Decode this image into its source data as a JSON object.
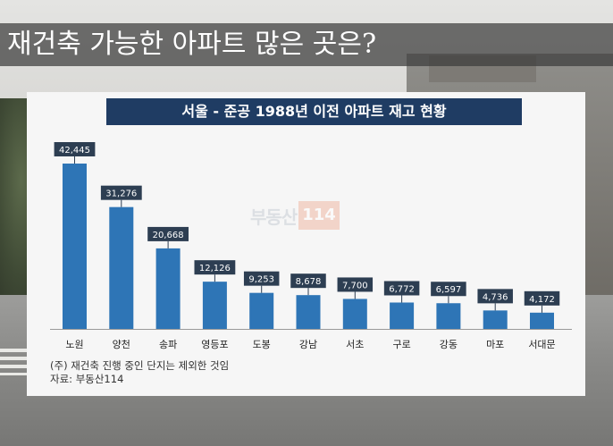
{
  "headline": "재건축 가능한 아파트 많은 곳은?",
  "watermark": {
    "text": "부동산",
    "number": "114"
  },
  "notes": {
    "footnote": "(주) 재건축 진행 중인 단지는 제외한 것임",
    "source": "자료: 부동산114"
  },
  "colors": {
    "bar": "#2e75b6",
    "label_bg": "#2d3e52",
    "title_bg": "#1f3c63"
  },
  "chart_data": {
    "type": "bar",
    "title": "서울 - 준공 1988년 이전 아파트 재고 현황",
    "categories": [
      "노원",
      "양천",
      "송파",
      "영등포",
      "도봉",
      "강남",
      "서초",
      "구로",
      "강동",
      "마포",
      "서대문"
    ],
    "values": [
      42445,
      31276,
      20668,
      12126,
      9253,
      8678,
      7700,
      6772,
      6597,
      4736,
      4172
    ],
    "value_labels": [
      "42,445",
      "31,276",
      "20,668",
      "12,126",
      "9,253",
      "8,678",
      "7,700",
      "6,772",
      "6,597",
      "4,736",
      "4,172"
    ],
    "xlabel": "",
    "ylabel": "",
    "ylim": [
      0,
      42445
    ],
    "grid": false,
    "legend": "none"
  }
}
